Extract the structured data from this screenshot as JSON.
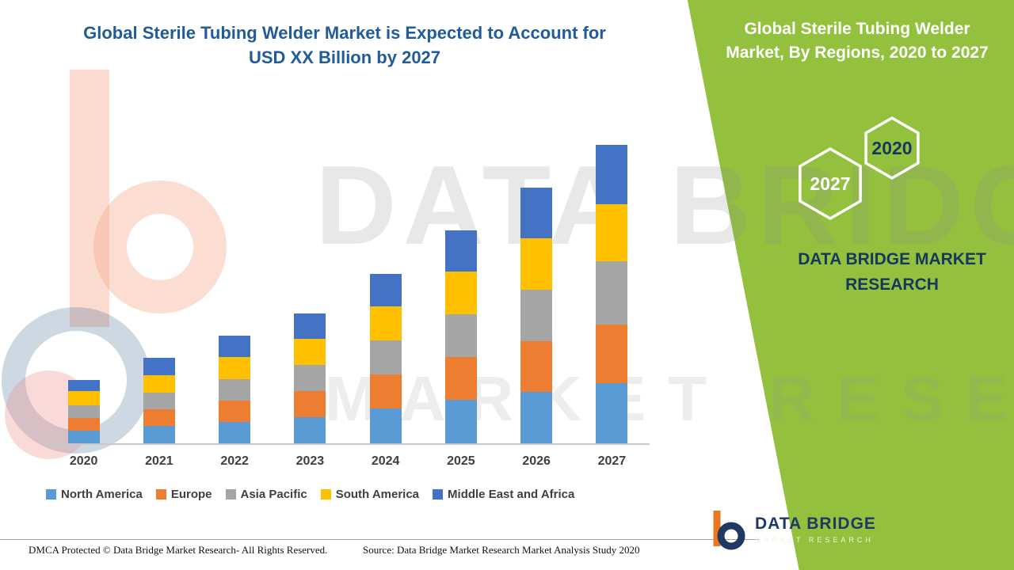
{
  "page": {
    "left_title_line1": "Global Sterile Tubing Welder Market is Expected to Account for",
    "left_title_line2": "USD XX Billion by 2027",
    "footer_left": "DMCA Protected © Data Bridge Market Research- All Rights Reserved.",
    "footer_source": "Source: Data Bridge Market Research Market Analysis Study 2020"
  },
  "right_panel": {
    "title_line1": "Global Sterile Tubing Welder",
    "title_line2": "Market, By Regions, 2020 to 2027",
    "hex_front_year": "2027",
    "hex_back_year": "2020",
    "brand_text_line1": "DATA BRIDGE MARKET",
    "brand_text_line2": "RESEARCH",
    "accent_green": "#93C13E"
  },
  "watermark": {
    "line1": "DATA BRIDGE",
    "line2": "MARKET RESEARCH"
  },
  "logo": {
    "name": "DATA BRIDGE",
    "subtitle": "MARKET RESEARCH"
  },
  "chart_data": {
    "type": "bar",
    "stacked": true,
    "title": "Global Sterile Tubing Welder Market is Expected to Account for USD XX Billion by 2027",
    "xlabel": "",
    "ylabel": "",
    "y_axis_visible": false,
    "values_unit": "relative units (chart shows no y-axis values; values estimated from bar heights)",
    "legend_position": "bottom",
    "categories": [
      "2020",
      "2021",
      "2022",
      "2023",
      "2024",
      "2025",
      "2026",
      "2027"
    ],
    "series": [
      {
        "name": "North America",
        "color": "#5B9BD5",
        "values": [
          16,
          22,
          27,
          33,
          44,
          55,
          65,
          76
        ]
      },
      {
        "name": "Europe",
        "color": "#ED7D31",
        "values": [
          16,
          21,
          27,
          33,
          43,
          54,
          64,
          74
        ]
      },
      {
        "name": "Asia Pacific",
        "color": "#A5A5A5",
        "values": [
          16,
          21,
          27,
          33,
          43,
          54,
          65,
          80
        ]
      },
      {
        "name": "South America",
        "color": "#FFC000",
        "values": [
          18,
          22,
          28,
          33,
          43,
          54,
          65,
          72
        ]
      },
      {
        "name": "Middle East and Africa",
        "color": "#4472C4",
        "values": [
          14,
          22,
          27,
          32,
          41,
          52,
          64,
          75
        ]
      }
    ],
    "totals": [
      80,
      108,
      136,
      164,
      214,
      269,
      323,
      377
    ]
  }
}
